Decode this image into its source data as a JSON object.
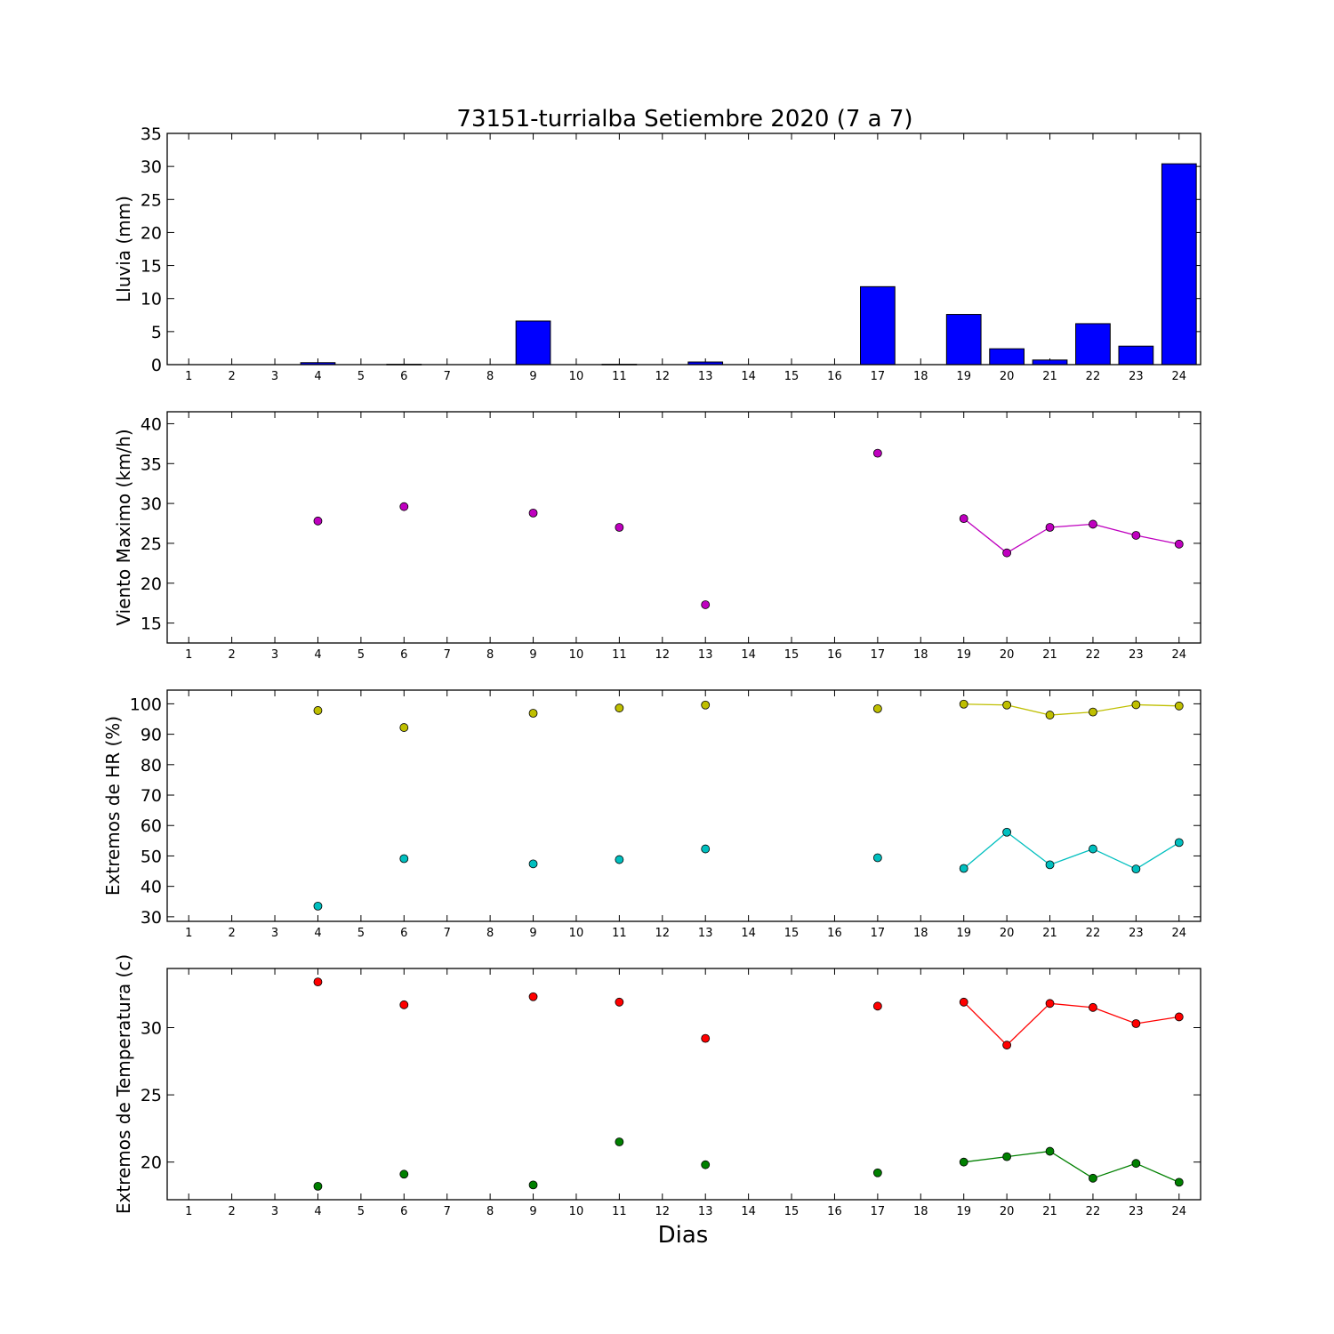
{
  "chart_data": {
    "title": "73151-turrialba Setiembre 2020  (7 a 7)",
    "xlabel": "Dias",
    "days": [
      1,
      2,
      3,
      4,
      5,
      6,
      7,
      8,
      9,
      10,
      11,
      12,
      13,
      14,
      15,
      16,
      17,
      18,
      19,
      20,
      21,
      22,
      23,
      24
    ],
    "panels": [
      {
        "type": "bar",
        "ylabel": "Lluvia (mm)",
        "ylim": [
          0,
          35
        ],
        "yticks": [
          0,
          5,
          10,
          15,
          20,
          25,
          30,
          35
        ],
        "series": [
          {
            "color": "#0000ff",
            "points": [
              [
                4,
                0.3
              ],
              [
                6,
                0.05
              ],
              [
                9,
                6.6
              ],
              [
                11,
                0.05
              ],
              [
                13,
                0.4
              ],
              [
                17,
                11.8
              ],
              [
                19,
                7.6
              ],
              [
                20,
                2.4
              ],
              [
                21,
                0.7
              ],
              [
                22,
                6.2
              ],
              [
                23,
                2.8
              ],
              [
                24,
                30.4
              ]
            ]
          }
        ]
      },
      {
        "type": "line",
        "ylabel": "Viento Maximo (km/h)",
        "ylim": [
          12.5,
          41.5
        ],
        "yticks": [
          15,
          20,
          25,
          30,
          35,
          40
        ],
        "series": [
          {
            "color": "#bf00bf",
            "points": [
              [
                4,
                27.8
              ],
              [
                6,
                29.6
              ],
              [
                9,
                28.8
              ],
              [
                11,
                27.0
              ],
              [
                13,
                17.3
              ],
              [
                17,
                36.3
              ],
              [
                19,
                28.1
              ],
              [
                20,
                23.8
              ],
              [
                21,
                27.0
              ],
              [
                22,
                27.4
              ],
              [
                23,
                26.0
              ],
              [
                24,
                24.9
              ]
            ]
          }
        ]
      },
      {
        "type": "line",
        "ylabel": "Extremos de HR (%)",
        "ylim": [
          28.5,
          104.5
        ],
        "yticks": [
          30,
          40,
          50,
          60,
          70,
          80,
          90,
          100
        ],
        "series": [
          {
            "color": "#bfbf00",
            "points": [
              [
                4,
                97.8
              ],
              [
                6,
                92.2
              ],
              [
                9,
                96.9
              ],
              [
                11,
                98.6
              ],
              [
                13,
                99.6
              ],
              [
                17,
                98.4
              ],
              [
                19,
                99.9
              ],
              [
                20,
                99.6
              ],
              [
                21,
                96.3
              ],
              [
                22,
                97.3
              ],
              [
                23,
                99.7
              ],
              [
                24,
                99.3
              ]
            ]
          },
          {
            "color": "#00bfbf",
            "points": [
              [
                4,
                33.5
              ],
              [
                6,
                49.1
              ],
              [
                9,
                47.4
              ],
              [
                11,
                48.8
              ],
              [
                13,
                52.3
              ],
              [
                17,
                49.4
              ],
              [
                19,
                45.9
              ],
              [
                20,
                57.8
              ],
              [
                21,
                47.1
              ],
              [
                22,
                52.3
              ],
              [
                23,
                45.7
              ],
              [
                24,
                54.4
              ]
            ]
          }
        ]
      },
      {
        "type": "line",
        "ylabel": "Extremos de Temperatura (c)",
        "ylim": [
          17.2,
          34.4
        ],
        "yticks": [
          20,
          25,
          30
        ],
        "series": [
          {
            "color": "#ff0000",
            "points": [
              [
                4,
                33.4
              ],
              [
                6,
                31.7
              ],
              [
                9,
                32.3
              ],
              [
                11,
                31.9
              ],
              [
                13,
                29.2
              ],
              [
                17,
                31.6
              ],
              [
                19,
                31.9
              ],
              [
                20,
                28.7
              ],
              [
                21,
                31.8
              ],
              [
                22,
                31.5
              ],
              [
                23,
                30.3
              ],
              [
                24,
                30.8
              ]
            ]
          },
          {
            "color": "#008000",
            "points": [
              [
                4,
                18.2
              ],
              [
                6,
                19.1
              ],
              [
                9,
                18.3
              ],
              [
                11,
                21.5
              ],
              [
                13,
                19.8
              ],
              [
                17,
                19.2
              ],
              [
                19,
                20.0
              ],
              [
                20,
                20.4
              ],
              [
                21,
                20.8
              ],
              [
                22,
                18.8
              ],
              [
                23,
                19.9
              ],
              [
                24,
                18.5
              ]
            ]
          }
        ]
      }
    ]
  }
}
